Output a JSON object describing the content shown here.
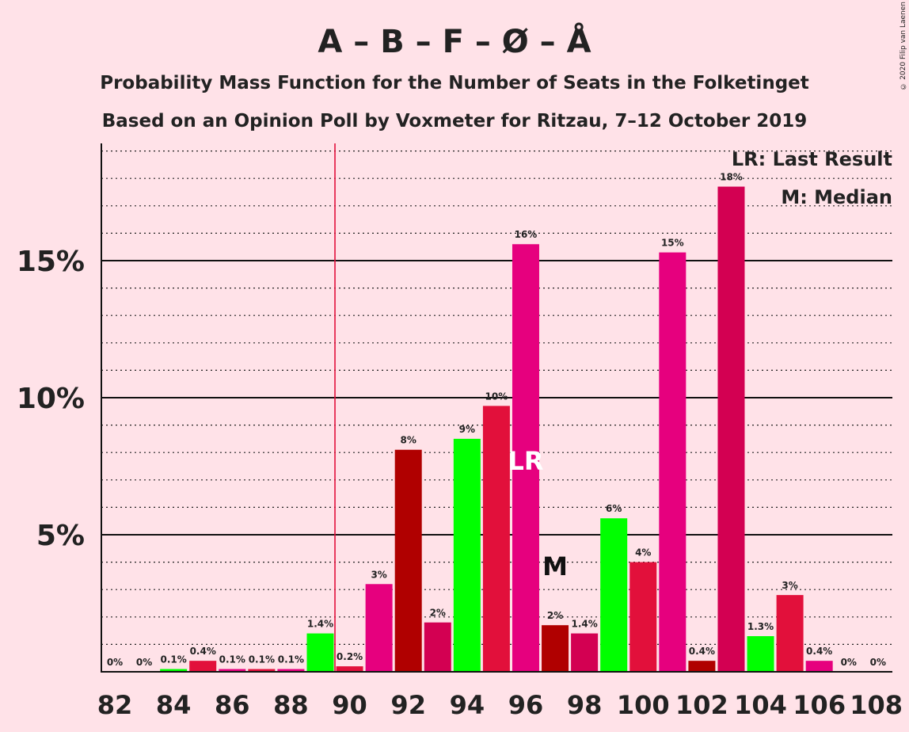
{
  "chart_data": {
    "type": "bar",
    "title": "A – B – F – Ø – Å",
    "subtitle": "Probability Mass Function for the Number of Seats in the Folketinget",
    "subtitle2": "Based on an Opinion Poll by Voxmeter for Ritzau, 7–12 October 2019",
    "copyright": "© 2020 Filip van Laenen",
    "legend": {
      "lr": "LR: Last Result",
      "m": "M: Median",
      "placement": "top-right"
    },
    "x": [
      82,
      83,
      84,
      85,
      86,
      87,
      88,
      89,
      90,
      91,
      92,
      93,
      94,
      95,
      96,
      97,
      98,
      99,
      100,
      101,
      102,
      103,
      104,
      105,
      106,
      107,
      108
    ],
    "values": [
      0,
      0,
      0.1,
      0.4,
      0.1,
      0.1,
      0.1,
      1.4,
      0.2,
      3.2,
      8.1,
      1.8,
      8.5,
      9.7,
      15.6,
      1.7,
      1.4,
      5.6,
      4.0,
      15.3,
      0.4,
      17.7,
      1.3,
      2.8,
      0.4,
      0,
      0
    ],
    "labels": [
      "0%",
      "0%",
      "0.1%",
      "0.4%",
      "0.1%",
      "0.1%",
      "0.1%",
      "1.4%",
      "0.2%",
      "3%",
      "8%",
      "2%",
      "9%",
      "10%",
      "16%",
      "2%",
      "1.4%",
      "6%",
      "4%",
      "15%",
      "0.4%",
      "18%",
      "1.3%",
      "3%",
      "0.4%",
      "0%",
      "0%"
    ],
    "colors": [
      "#E2103B",
      "#00FF00",
      "#00FF00",
      "#E2103B",
      "#E6007E",
      "#E2103B",
      "#E6007E",
      "#00FF00",
      "#E2103B",
      "#E6007E",
      "#B00000",
      "#D30052",
      "#00FF00",
      "#E2103B",
      "#E6007E",
      "#B00000",
      "#D30052",
      "#00FF00",
      "#E2103B",
      "#E6007E",
      "#B00000",
      "#D30052",
      "#00FF00",
      "#E2103B",
      "#E6007E",
      "#E2103B",
      "#E6007E"
    ],
    "xticks": [
      "82",
      "84",
      "86",
      "88",
      "90",
      "92",
      "94",
      "96",
      "98",
      "100",
      "102",
      "104",
      "106",
      "108"
    ],
    "yticks": [
      {
        "value": 5,
        "label": "5%"
      },
      {
        "value": 10,
        "label": "10%"
      },
      {
        "value": 15,
        "label": "15%"
      }
    ],
    "ylim": [
      0,
      19
    ],
    "minor_grid_step": 1,
    "last_result": 90,
    "last_result_label": "LR",
    "last_result_bar": 96,
    "median": 97,
    "median_label": "M"
  }
}
